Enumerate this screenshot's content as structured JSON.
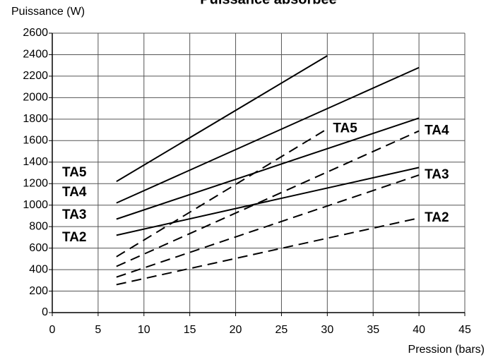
{
  "chart_data": {
    "type": "line",
    "title": "Puissance absorbée",
    "y_label": "Puissance (W)",
    "x_label": "Pression (bars)",
    "xlim": [
      0,
      45
    ],
    "xticks": [
      0,
      5,
      10,
      15,
      20,
      25,
      30,
      35,
      40,
      45
    ],
    "ylim": [
      0,
      2600
    ],
    "yticks": [
      0,
      200,
      400,
      600,
      800,
      1000,
      1200,
      1400,
      1600,
      1800,
      2000,
      2200,
      2400,
      2600
    ],
    "grid": true,
    "series": [
      {
        "name": "TA5",
        "color": "#000000",
        "style": "solid",
        "x": [
          7,
          30
        ],
        "values": [
          1220,
          2390
        ]
      },
      {
        "name": "TA4",
        "color": "#000000",
        "style": "solid",
        "x": [
          7,
          40
        ],
        "values": [
          1020,
          2280
        ]
      },
      {
        "name": "TA3",
        "color": "#000000",
        "style": "solid",
        "x": [
          7,
          40
        ],
        "values": [
          870,
          1810
        ]
      },
      {
        "name": "TA2",
        "color": "#000000",
        "style": "solid",
        "x": [
          7,
          40
        ],
        "values": [
          720,
          1350
        ]
      },
      {
        "name": "TA5",
        "color": "#000000",
        "style": "dashed",
        "x": [
          7,
          30
        ],
        "values": [
          520,
          1710
        ]
      },
      {
        "name": "TA4",
        "color": "#000000",
        "style": "dashed",
        "x": [
          7,
          40
        ],
        "values": [
          430,
          1690
        ]
      },
      {
        "name": "TA3",
        "color": "#000000",
        "style": "dashed",
        "x": [
          7,
          40
        ],
        "values": [
          330,
          1280
        ]
      },
      {
        "name": "TA2",
        "color": "#000000",
        "style": "dashed",
        "x": [
          7,
          40
        ],
        "values": [
          260,
          880
        ]
      }
    ]
  }
}
